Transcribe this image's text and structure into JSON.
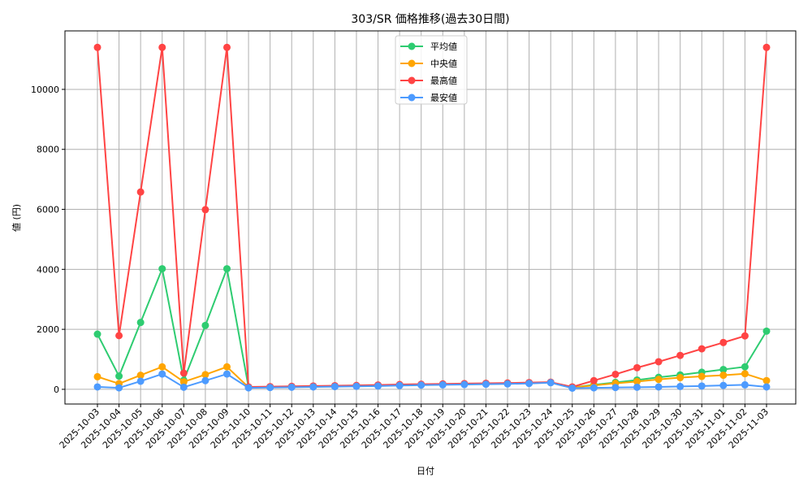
{
  "chart_data": {
    "type": "line",
    "title": "303/SR 価格推移(過去30日間)",
    "xlabel": "日付",
    "ylabel": "値 (円)",
    "ylim": [
      -490,
      11950
    ],
    "yticks": [
      0,
      2000,
      4000,
      6000,
      8000,
      10000
    ],
    "grid": true,
    "legend_position": "top-center",
    "x": [
      "2025-10-03",
      "2025-10-04",
      "2025-10-05",
      "2025-10-06",
      "2025-10-07",
      "2025-10-08",
      "2025-10-09",
      "2025-10-10",
      "2025-10-11",
      "2025-10-12",
      "2025-10-13",
      "2025-10-14",
      "2025-10-15",
      "2025-10-16",
      "2025-10-17",
      "2025-10-18",
      "2025-10-19",
      "2025-10-20",
      "2025-10-21",
      "2025-10-22",
      "2025-10-23",
      "2025-10-24",
      "2025-10-25",
      "2025-10-26",
      "2025-10-27",
      "2025-10-28",
      "2025-10-29",
      "2025-10-30",
      "2025-10-31",
      "2025-11-01",
      "2025-11-02",
      "2025-11-03"
    ],
    "series": [
      {
        "name": "平均値",
        "color": "#2ecc71",
        "values": [
          1840,
          440,
          2230,
          4020,
          300,
          2130,
          4020,
          70,
          75,
          85,
          95,
          105,
          115,
          130,
          145,
          155,
          165,
          175,
          185,
          195,
          210,
          230,
          60,
          150,
          230,
          310,
          400,
          480,
          570,
          660,
          750,
          1940
        ]
      },
      {
        "name": "中央値",
        "color": "#ffa500",
        "values": [
          420,
          190,
          470,
          750,
          250,
          490,
          750,
          70,
          75,
          85,
          95,
          105,
          115,
          130,
          145,
          155,
          165,
          175,
          185,
          195,
          210,
          230,
          60,
          130,
          200,
          260,
          330,
          390,
          430,
          470,
          520,
          290
        ]
      },
      {
        "name": "最高値",
        "color": "#ff4444",
        "values": [
          11400,
          1790,
          6580,
          11400,
          540,
          5990,
          11400,
          80,
          90,
          100,
          110,
          120,
          130,
          145,
          160,
          170,
          180,
          190,
          200,
          210,
          225,
          240,
          80,
          290,
          500,
          720,
          920,
          1130,
          1350,
          1560,
          1780,
          11400
        ]
      },
      {
        "name": "最安値",
        "color": "#4d9bff",
        "values": [
          80,
          50,
          270,
          510,
          70,
          290,
          510,
          50,
          60,
          70,
          80,
          90,
          100,
          110,
          125,
          140,
          150,
          160,
          170,
          180,
          195,
          220,
          40,
          50,
          60,
          70,
          80,
          95,
          110,
          130,
          150,
          80
        ]
      }
    ]
  }
}
